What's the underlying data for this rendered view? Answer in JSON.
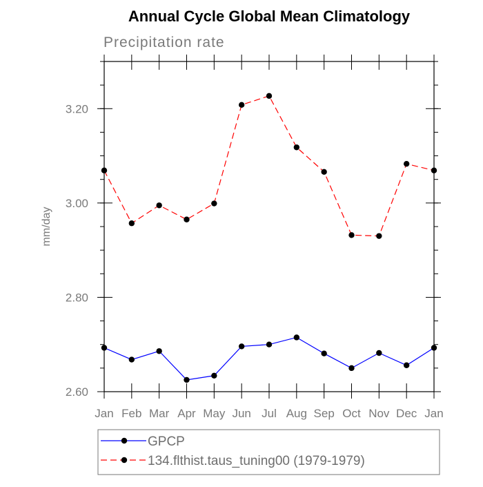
{
  "chart_data": {
    "type": "line",
    "title": "Annual Cycle Global Mean Climatology",
    "subtitle": "Precipitation rate",
    "xlabel": "",
    "ylabel": "mm/day",
    "categories": [
      "Jan",
      "Feb",
      "Mar",
      "Apr",
      "May",
      "Jun",
      "Jul",
      "Aug",
      "Sep",
      "Oct",
      "Nov",
      "Dec",
      "Jan"
    ],
    "ylim": [
      2.6,
      3.3
    ],
    "yticks": [
      2.6,
      2.8,
      3.0,
      3.2
    ],
    "ytick_labels": [
      "2.60",
      "2.80",
      "3.00",
      "3.20"
    ],
    "grid": false,
    "legend_position": "bottom",
    "series": [
      {
        "name": "GPCP",
        "color": "#0000ff",
        "dashed": false,
        "values": [
          2.693,
          2.668,
          2.686,
          2.625,
          2.634,
          2.696,
          2.7,
          2.715,
          2.681,
          2.65,
          2.682,
          2.656,
          2.693
        ]
      },
      {
        "name": "134.flthist.taus_tuning00 (1979-1979)",
        "color": "#ff0000",
        "dashed": true,
        "values": [
          3.069,
          2.957,
          2.995,
          2.965,
          2.999,
          3.208,
          3.227,
          3.118,
          3.066,
          2.932,
          2.93,
          3.083,
          3.069
        ]
      }
    ]
  }
}
